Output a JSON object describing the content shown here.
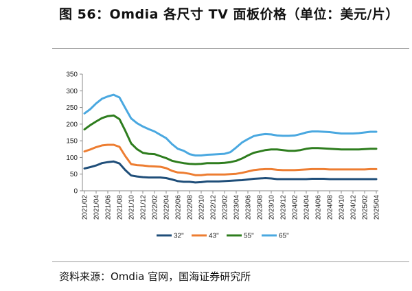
{
  "title": "图 56：Omdia 各尺寸 TV 面板价格（单位：美元/片）",
  "source": "资料来源：Omdia 官网，国海证券研究所",
  "chart_data": {
    "type": "line",
    "title": "",
    "xlabel": "",
    "ylabel": "",
    "ylim": [
      0,
      350
    ],
    "yticks": [
      0,
      50,
      100,
      150,
      200,
      250,
      300,
      350
    ],
    "grid": false,
    "legend_position": "bottom",
    "x": [
      "2021/02",
      "2021/03",
      "2021/04",
      "2021/05",
      "2021/06",
      "2021/07",
      "2021/08",
      "2021/09",
      "2021/10",
      "2021/11",
      "2021/12",
      "2022/01",
      "2022/02",
      "2022/03",
      "2022/04",
      "2022/05",
      "2022/06",
      "2022/07",
      "2022/08",
      "2022/09",
      "2022/10",
      "2022/11",
      "2022/12",
      "2023/01",
      "2023/02",
      "2023/03",
      "2023/04",
      "2023/05",
      "2023/06",
      "2023/07",
      "2023/08",
      "2023/09",
      "2023/10",
      "2023/11",
      "2023/12",
      "2024/01",
      "2024/02",
      "2024/03",
      "2024/04",
      "2024/05",
      "2024/06",
      "2024/07",
      "2024/08",
      "2024/09",
      "2024/10",
      "2024/11",
      "2024/12",
      "2025/01",
      "2025/02",
      "2025/03",
      "2025/04"
    ],
    "xtick_labels": [
      "2021/02",
      "2021/04",
      "2021/06",
      "2021/08",
      "2021/10",
      "2021/12",
      "2022/02",
      "2022/04",
      "2022/06",
      "2022/08",
      "2022/10",
      "2022/12",
      "2023/02",
      "2023/04",
      "2023/06",
      "2023/08",
      "2023/10",
      "2023/12",
      "2024/02",
      "2024/04",
      "2024/06",
      "2024/08",
      "2024/10",
      "2024/12",
      "2025/02",
      "2025/04"
    ],
    "series": [
      {
        "name": "32\"",
        "color": "#1f4e79",
        "values": [
          67,
          71,
          76,
          83,
          86,
          88,
          82,
          62,
          46,
          43,
          41,
          40,
          40,
          40,
          38,
          34,
          29,
          27,
          27,
          25,
          26,
          28,
          28,
          28,
          29,
          30,
          31,
          32,
          34,
          36,
          37,
          38,
          37,
          35,
          35,
          35,
          35,
          35,
          35,
          36,
          36,
          36,
          35,
          35,
          35,
          35,
          35,
          35,
          35,
          35,
          35
        ]
      },
      {
        "name": "43\"",
        "color": "#ed7d31",
        "values": [
          118,
          124,
          131,
          136,
          138,
          138,
          132,
          104,
          80,
          77,
          76,
          74,
          73,
          72,
          68,
          60,
          55,
          54,
          51,
          47,
          47,
          49,
          49,
          49,
          49,
          50,
          51,
          54,
          58,
          62,
          64,
          65,
          65,
          63,
          62,
          62,
          62,
          63,
          64,
          65,
          65,
          65,
          64,
          64,
          64,
          64,
          64,
          64,
          64,
          65,
          65
        ]
      },
      {
        "name": "55\"",
        "color": "#2e7d1e",
        "values": [
          184,
          197,
          208,
          218,
          224,
          226,
          215,
          180,
          142,
          125,
          114,
          111,
          110,
          104,
          98,
          90,
          86,
          83,
          81,
          80,
          81,
          83,
          83,
          83,
          84,
          86,
          90,
          97,
          106,
          114,
          118,
          122,
          124,
          124,
          122,
          120,
          120,
          122,
          126,
          128,
          128,
          127,
          126,
          125,
          124,
          124,
          124,
          124,
          125,
          126,
          126
        ]
      },
      {
        "name": "65\"",
        "color": "#4aa8e0",
        "values": [
          232,
          245,
          262,
          276,
          283,
          288,
          280,
          248,
          217,
          203,
          193,
          185,
          178,
          168,
          158,
          140,
          126,
          120,
          110,
          106,
          106,
          108,
          109,
          110,
          111,
          116,
          130,
          145,
          155,
          164,
          168,
          170,
          169,
          166,
          165,
          165,
          166,
          170,
          175,
          178,
          178,
          177,
          176,
          174,
          172,
          172,
          172,
          173,
          175,
          177,
          177
        ]
      }
    ]
  }
}
